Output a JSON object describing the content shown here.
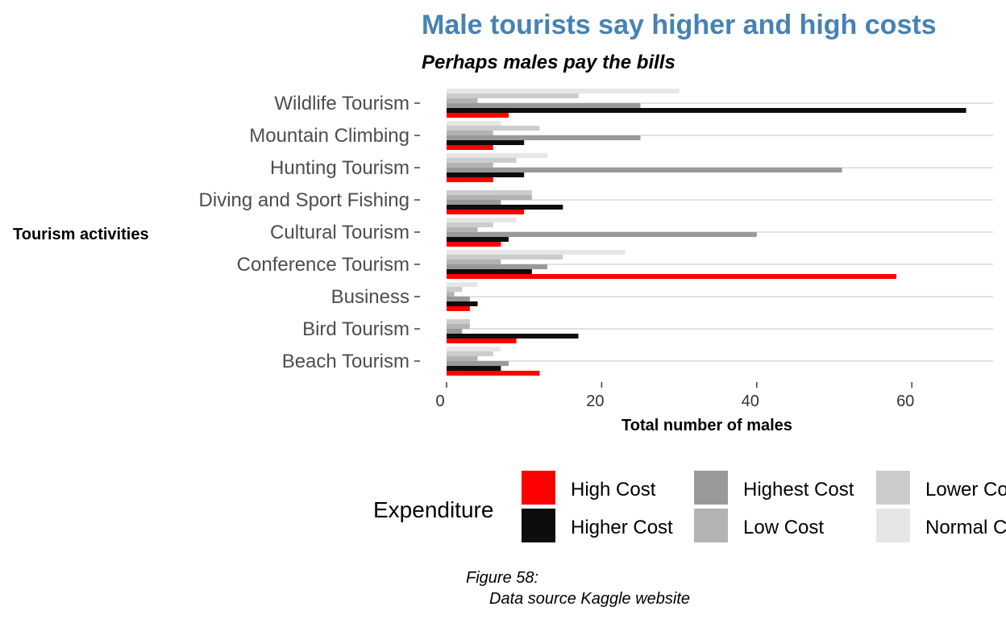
{
  "chart_data": {
    "type": "bar",
    "orientation": "horizontal",
    "title": "Male tourists say higher and high costs",
    "subtitle": "Perhaps males pay the bills",
    "xlabel": "Total number of males",
    "ylabel": "Tourism activities",
    "xlim": [
      0,
      71
    ],
    "x_ticks": [
      0,
      20,
      40,
      60
    ],
    "grid": "horizontal major",
    "legend_title": "Expenditure",
    "legend_position": "bottom",
    "categories": [
      "Beach Tourism",
      "Bird Tourism",
      "Business",
      "Conference Tourism",
      "Cultural Tourism",
      "Diving and Sport Fishing",
      "Hunting Tourism",
      "Mountain Climbing",
      "Wildlife Tourism"
    ],
    "series": [
      {
        "name": "High Cost",
        "color": "#ff0000",
        "values": [
          12,
          9,
          3,
          58,
          7,
          10,
          6,
          6,
          8
        ]
      },
      {
        "name": "Higher Cost",
        "color": "#0d0d0d",
        "values": [
          7,
          17,
          4,
          11,
          8,
          15,
          10,
          10,
          67
        ]
      },
      {
        "name": "Highest Cost",
        "color": "#999999",
        "values": [
          8,
          2,
          3,
          13,
          40,
          7,
          51,
          25,
          25
        ]
      },
      {
        "name": "Low Cost",
        "color": "#b3b3b3",
        "values": [
          4,
          3,
          1,
          7,
          4,
          11,
          6,
          6,
          4
        ]
      },
      {
        "name": "Lower Cost",
        "color": "#cccccc",
        "values": [
          6,
          3,
          2,
          15,
          6,
          11,
          9,
          12,
          17
        ]
      },
      {
        "name": "Normal Cost",
        "color": "#e6e6e6",
        "values": [
          7,
          0,
          4,
          23,
          9,
          0,
          13,
          7,
          30
        ]
      }
    ],
    "caption_lines": [
      "Figure 58:",
      "Data source Kaggle website"
    ]
  },
  "colors": {
    "title": "#4682b4",
    "grid": "#d9d9d9",
    "tick": "#333333"
  }
}
